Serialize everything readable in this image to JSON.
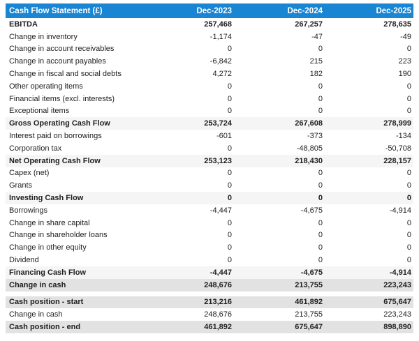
{
  "colors": {
    "header_bg": "#1985d3",
    "header_text": "#ffffff",
    "subtotal_row_bg": "#f5f5f5",
    "total_row_bg": "#e2e2e2",
    "body_text": "#212121",
    "page_bg": "#ffffff"
  },
  "chart_data": {
    "type": "table",
    "title": "Cash Flow Statement (£)",
    "columns": [
      "Dec-2023",
      "Dec-2024",
      "Dec-2025"
    ],
    "sections": [
      {
        "rows": [
          {
            "label": "EBITDA",
            "values": [
              "257,468",
              "267,257",
              "278,635"
            ],
            "style": "bold"
          },
          {
            "label": "Change in inventory",
            "values": [
              "-1,174",
              "-47",
              "-49"
            ],
            "style": "normal"
          },
          {
            "label": "Change in account receivables",
            "values": [
              "0",
              "0",
              "0"
            ],
            "style": "normal"
          },
          {
            "label": "Change in account payables",
            "values": [
              "-6,842",
              "215",
              "223"
            ],
            "style": "normal"
          },
          {
            "label": "Change in fiscal and social debts",
            "values": [
              "4,272",
              "182",
              "190"
            ],
            "style": "normal"
          },
          {
            "label": "Other operating items",
            "values": [
              "0",
              "0",
              "0"
            ],
            "style": "normal"
          },
          {
            "label": "Financial items (excl. interests)",
            "values": [
              "0",
              "0",
              "0"
            ],
            "style": "normal"
          },
          {
            "label": "Exceptional items",
            "values": [
              "0",
              "0",
              "0"
            ],
            "style": "normal"
          },
          {
            "label": "Gross Operating Cash Flow",
            "values": [
              "253,724",
              "267,608",
              "278,999"
            ],
            "style": "subtotal"
          },
          {
            "label": "Interest paid on borrowings",
            "values": [
              "-601",
              "-373",
              "-134"
            ],
            "style": "normal"
          },
          {
            "label": "Corporation tax",
            "values": [
              "0",
              "-48,805",
              "-50,708"
            ],
            "style": "normal"
          },
          {
            "label": "Net Operating Cash Flow",
            "values": [
              "253,123",
              "218,430",
              "228,157"
            ],
            "style": "subtotal"
          },
          {
            "label": "Capex (net)",
            "values": [
              "0",
              "0",
              "0"
            ],
            "style": "normal"
          },
          {
            "label": "Grants",
            "values": [
              "0",
              "0",
              "0"
            ],
            "style": "normal"
          },
          {
            "label": "Investing Cash Flow",
            "values": [
              "0",
              "0",
              "0"
            ],
            "style": "subtotal"
          },
          {
            "label": "Borrowings",
            "values": [
              "-4,447",
              "-4,675",
              "-4,914"
            ],
            "style": "normal"
          },
          {
            "label": "Change in share capital",
            "values": [
              "0",
              "0",
              "0"
            ],
            "style": "normal"
          },
          {
            "label": "Change in shareholder loans",
            "values": [
              "0",
              "0",
              "0"
            ],
            "style": "normal"
          },
          {
            "label": "Change in other equity",
            "values": [
              "0",
              "0",
              "0"
            ],
            "style": "normal"
          },
          {
            "label": "Dividend",
            "values": [
              "0",
              "0",
              "0"
            ],
            "style": "normal"
          },
          {
            "label": "Financing Cash Flow",
            "values": [
              "-4,447",
              "-4,675",
              "-4,914"
            ],
            "style": "subtotal"
          },
          {
            "label": "Change in cash",
            "values": [
              "248,676",
              "213,755",
              "223,243"
            ],
            "style": "total"
          }
        ]
      },
      {
        "rows": [
          {
            "label": "Cash position - start",
            "values": [
              "213,216",
              "461,892",
              "675,647"
            ],
            "style": "total"
          },
          {
            "label": "Change in cash",
            "values": [
              "248,676",
              "213,755",
              "223,243"
            ],
            "style": "normal"
          },
          {
            "label": "Cash position - end",
            "values": [
              "461,892",
              "675,647",
              "898,890"
            ],
            "style": "total"
          }
        ]
      }
    ]
  }
}
